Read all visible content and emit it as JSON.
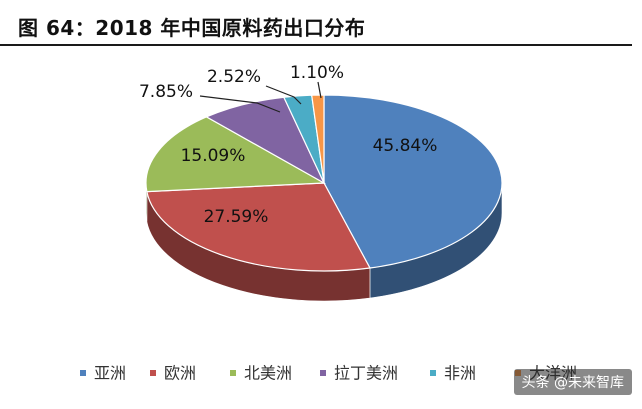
{
  "title": "图 64：2018 年中国原料药出口分布",
  "watermark": "头条 @未来智库",
  "chart_data": {
    "type": "pie",
    "style": "3d",
    "categories": [
      "亚洲",
      "欧洲",
      "北美洲",
      "拉丁美洲",
      "非洲",
      "大洋洲"
    ],
    "values": [
      45.84,
      27.59,
      15.09,
      7.85,
      2.52,
      1.1
    ],
    "labels": [
      "45.84%",
      "27.59%",
      "15.09%",
      "7.85%",
      "2.52%",
      "1.10%"
    ],
    "colors": [
      "#4F81BD",
      "#C0504D",
      "#9BBB59",
      "#8064A2",
      "#4BACC6",
      "#F79646"
    ],
    "legend_position": "bottom"
  }
}
